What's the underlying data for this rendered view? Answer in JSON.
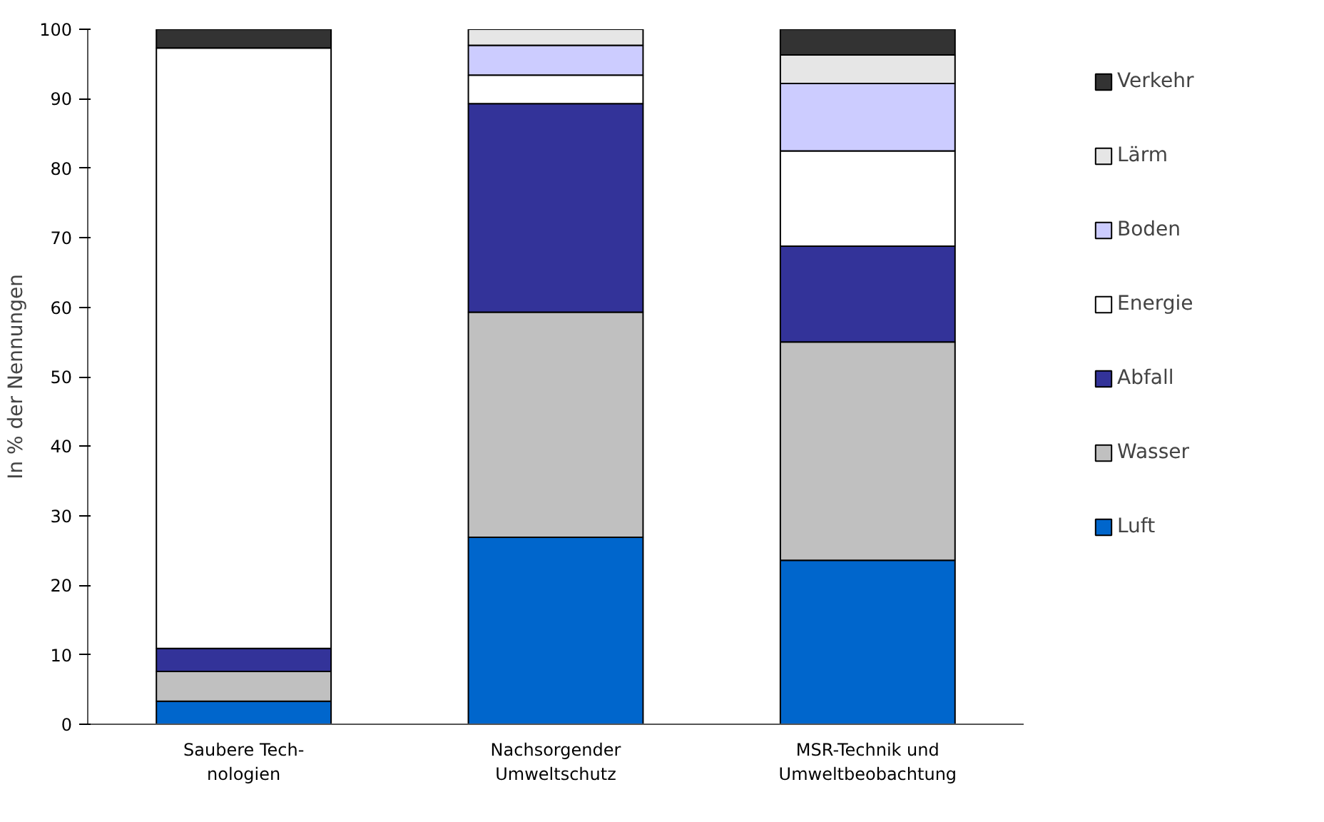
{
  "chart_data": {
    "type": "bar",
    "stacked": true,
    "ylabel": "In % der Nennungen",
    "categories": [
      "Saubere Tech-\nnologien",
      "Nachsorgender\nUmweltschutz",
      "MSR-Technik und\nUmweltbeobachtung"
    ],
    "series": [
      {
        "name": "Luft",
        "color": "#0066cc",
        "values": [
          3.3,
          26.9,
          23.6
        ]
      },
      {
        "name": "Wasser",
        "color": "#c0c0c0",
        "values": [
          4.3,
          32.4,
          31.4
        ]
      },
      {
        "name": "Abfall",
        "color": "#333399",
        "values": [
          3.3,
          30.0,
          13.8
        ]
      },
      {
        "name": "Energie",
        "color": "#ffffff",
        "values": [
          86.4,
          4.1,
          13.7
        ]
      },
      {
        "name": "Boden",
        "color": "#ccccff",
        "values": [
          null,
          4.3,
          9.7
        ]
      },
      {
        "name": "Lärm",
        "color": "#e6e6e6",
        "values": [
          null,
          2.3,
          4.1
        ]
      },
      {
        "name": "Verkehr",
        "color": "#333333",
        "values": [
          2.7,
          null,
          3.7
        ]
      }
    ],
    "ylim": [
      0,
      100
    ],
    "yticks": [
      0,
      10,
      20,
      30,
      40,
      50,
      60,
      70,
      80,
      90,
      100
    ],
    "grid": false,
    "legend": "right"
  }
}
